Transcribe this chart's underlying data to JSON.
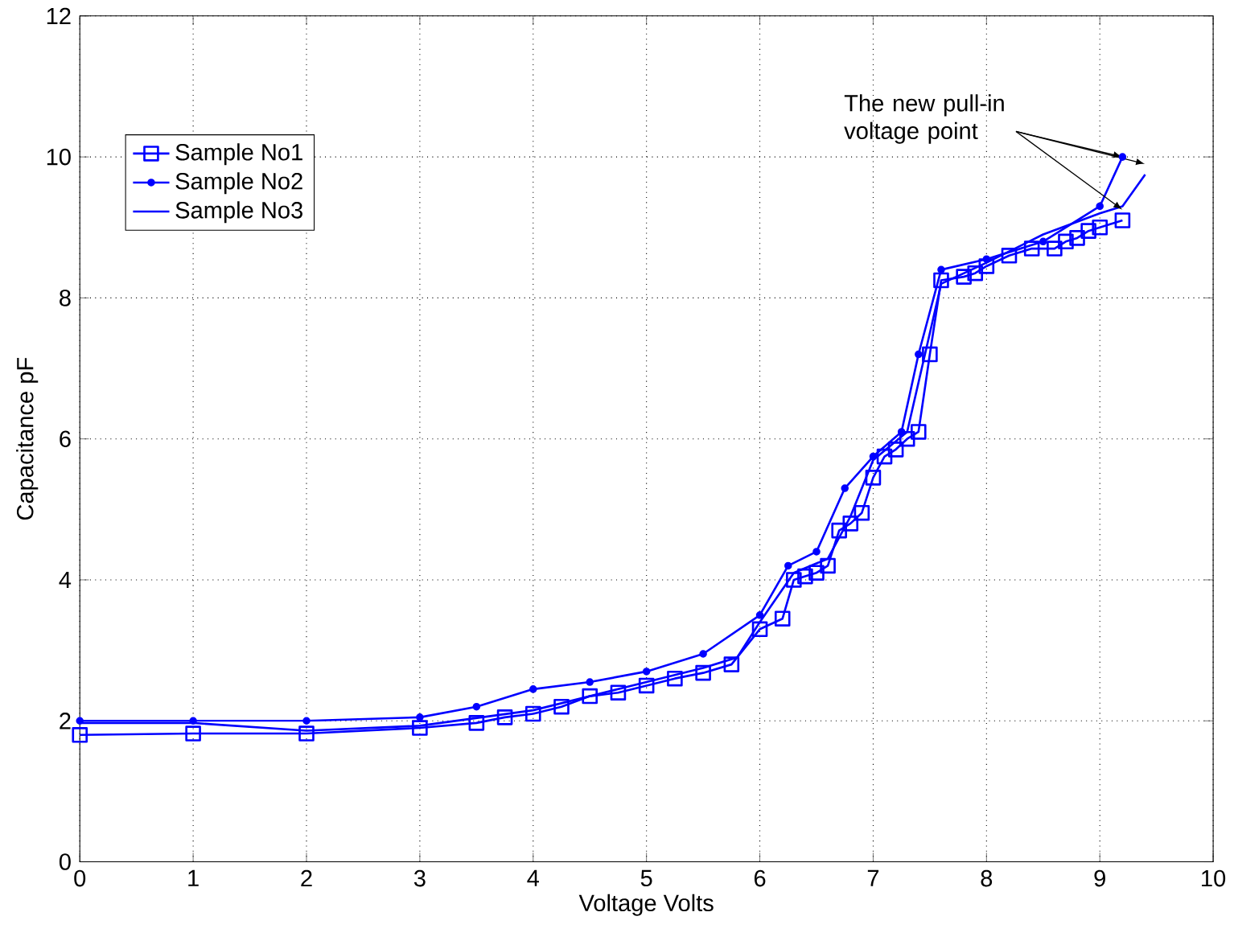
{
  "chart_data": {
    "type": "line",
    "xlabel": "Voltage Volts",
    "ylabel": "Capacitance pF",
    "xlim": [
      0,
      10
    ],
    "ylim": [
      0,
      12
    ],
    "xticks": [
      0,
      1,
      2,
      3,
      4,
      5,
      6,
      7,
      8,
      9,
      10
    ],
    "yticks": [
      0,
      2,
      4,
      6,
      8,
      10,
      12
    ],
    "grid": true,
    "legend": "top left",
    "annotations": [
      {
        "text": "The new pull-in voltage point",
        "x": 9.2,
        "y": 10.0
      }
    ],
    "series": [
      {
        "name": "Sample No1",
        "color": "#0000ff",
        "marker": "square",
        "x": [
          0,
          1,
          2,
          3,
          3.5,
          3.75,
          4,
          4.25,
          4.5,
          4.75,
          5,
          5.25,
          5.5,
          5.75,
          6,
          6.2,
          6.3,
          6.4,
          6.5,
          6.6,
          6.7,
          6.8,
          6.9,
          7.0,
          7.1,
          7.2,
          7.3,
          7.4,
          7.5,
          7.6,
          7.8,
          7.9,
          8.0,
          8.2,
          8.4,
          8.6,
          8.7,
          8.8,
          8.9,
          9.0,
          9.2
        ],
        "values": [
          1.8,
          1.82,
          1.82,
          1.9,
          1.97,
          2.05,
          2.1,
          2.2,
          2.35,
          2.4,
          2.5,
          2.6,
          2.68,
          2.8,
          3.3,
          3.45,
          4.0,
          4.05,
          4.1,
          4.2,
          4.7,
          4.8,
          4.95,
          5.45,
          5.75,
          5.85,
          6.0,
          6.1,
          7.2,
          8.25,
          8.3,
          8.35,
          8.45,
          8.6,
          8.7,
          8.7,
          8.8,
          8.85,
          8.95,
          9.0,
          9.1
        ]
      },
      {
        "name": "Sample No2",
        "color": "#0000ff",
        "marker": "circle",
        "x": [
          0,
          1,
          2,
          3,
          3.5,
          4,
          4.5,
          5,
          5.5,
          6,
          6.25,
          6.5,
          6.75,
          7,
          7.25,
          7.4,
          7.6,
          8,
          8.5,
          9,
          9.2
        ],
        "values": [
          2.0,
          2.0,
          2.0,
          2.05,
          2.2,
          2.45,
          2.55,
          2.7,
          2.95,
          3.5,
          4.2,
          4.4,
          5.3,
          5.75,
          6.1,
          7.2,
          8.4,
          8.55,
          8.8,
          9.3,
          10.0
        ]
      },
      {
        "name": "Sample No3",
        "color": "#0000ff",
        "marker": "none",
        "x": [
          0,
          1,
          2,
          3,
          4,
          5,
          5.5,
          5.8,
          6,
          6.3,
          6.6,
          6.8,
          7.0,
          7.3,
          7.5,
          7.6,
          8.0,
          8.5,
          9.0,
          9.2,
          9.4
        ],
        "values": [
          1.97,
          1.97,
          1.86,
          1.93,
          2.15,
          2.55,
          2.75,
          2.9,
          3.4,
          4.1,
          4.3,
          4.9,
          5.7,
          6.1,
          7.5,
          8.2,
          8.5,
          8.9,
          9.2,
          9.3,
          9.75
        ]
      }
    ]
  }
}
